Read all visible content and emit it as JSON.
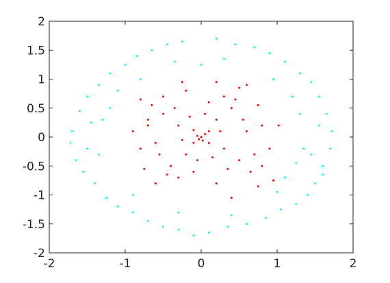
{
  "chart_data": {
    "type": "scatter",
    "xlim": [
      -2,
      2
    ],
    "ylim": [
      -2,
      2
    ],
    "xticks": [
      -2,
      -1,
      0,
      1,
      2
    ],
    "yticks": [
      -2,
      -1.5,
      -1,
      -0.5,
      0,
      0.5,
      1,
      1.5,
      2
    ],
    "series": [
      {
        "color": "#00ffff",
        "x": [
          1.72,
          1.7,
          1.65,
          1.6,
          1.55,
          1.5,
          1.45,
          1.4,
          1.3,
          1.25,
          1.1,
          1.05,
          0.9,
          0.85,
          0.7,
          0.6,
          0.45,
          0.35,
          0.2,
          0.1,
          0,
          -0.1,
          -0.25,
          -0.3,
          -0.45,
          -0.5,
          -0.65,
          -0.7,
          -0.85,
          -0.9,
          -1.0,
          -1.1,
          -1.2,
          -1.25,
          -1.35,
          -1.4,
          -1.5,
          -1.55,
          -1.6,
          -1.65,
          -1.7,
          -1.72,
          -1.3,
          -1.35,
          -1.2,
          1.3,
          1.25,
          1.2,
          1.35,
          0.95,
          1.0,
          -0.8,
          -0.9,
          0.3,
          -0.35,
          0.4,
          -0.3,
          1.1,
          -1.1,
          1.55,
          -1.5,
          1.45,
          -1.45,
          1.6
        ],
        "y": [
          0.1,
          -0.2,
          0.4,
          -0.5,
          0.7,
          -0.8,
          0.95,
          -1.0,
          1.1,
          -1.15,
          1.3,
          -1.25,
          1.45,
          -1.4,
          1.55,
          -1.5,
          1.6,
          -1.55,
          1.7,
          -1.65,
          1.25,
          -1.7,
          1.65,
          -1.6,
          1.6,
          -1.55,
          1.5,
          -1.45,
          1.4,
          -1.3,
          1.25,
          -1.2,
          1.1,
          -1.05,
          0.9,
          -0.8,
          0.7,
          -0.6,
          0.45,
          -0.4,
          0.1,
          -0.1,
          0.3,
          -0.3,
          0.5,
          0.4,
          -0.45,
          0.7,
          -0.2,
          1.0,
          -0.95,
          1.0,
          -1.0,
          1.35,
          1.3,
          -1.35,
          -1.3,
          -0.7,
          0.8,
          0.2,
          -0.2,
          -0.3,
          0.25,
          -0.65
        ]
      },
      {
        "color": "#ff0000",
        "x": [
          0,
          0.05,
          -0.05,
          0.02,
          -0.03,
          0.1,
          -0.1,
          0.1,
          -0.1,
          0.2,
          -0.2,
          0.3,
          -0.3,
          0.4,
          -0.4,
          0.5,
          -0.5,
          0.6,
          -0.6,
          0.1,
          -0.1,
          0.7,
          -0.7,
          0.3,
          -0.3,
          0.8,
          -0.8,
          0.2,
          -0.2,
          0.45,
          -0.45,
          0.65,
          -0.65,
          0.25,
          -0.25,
          0.15,
          -0.15,
          0.55,
          -0.55,
          0.35,
          -0.35,
          0.05,
          -0.05,
          0.9,
          -0.9,
          1.02,
          0.95,
          0.75,
          0.4,
          -0.5,
          -0.25,
          0.2,
          0.5,
          0.75,
          -0.75,
          -0.7,
          0.8,
          0.6,
          -0.6,
          -0.8
        ],
        "y": [
          0,
          0.05,
          0.02,
          -0.06,
          -0.04,
          0.1,
          -0.1,
          -0.1,
          0.12,
          0.3,
          -0.3,
          -0.2,
          0.2,
          0.5,
          -0.5,
          -0.4,
          0.4,
          0.1,
          -0.1,
          0.6,
          -0.6,
          -0.3,
          0.3,
          0.7,
          -0.7,
          0.2,
          -0.2,
          -0.8,
          0.8,
          0.65,
          -0.65,
          -0.6,
          0.55,
          0.1,
          -0.05,
          -0.35,
          0.35,
          0.3,
          -0.3,
          -0.55,
          0.5,
          0.4,
          -0.4,
          -0.2,
          0.1,
          0.2,
          -0.75,
          -0.85,
          -1.05,
          0.7,
          0.95,
          0.95,
          0.85,
          0.55,
          -0.55,
          0.2,
          -0.5,
          0.9,
          -0.8,
          0.65
        ]
      }
    ]
  }
}
